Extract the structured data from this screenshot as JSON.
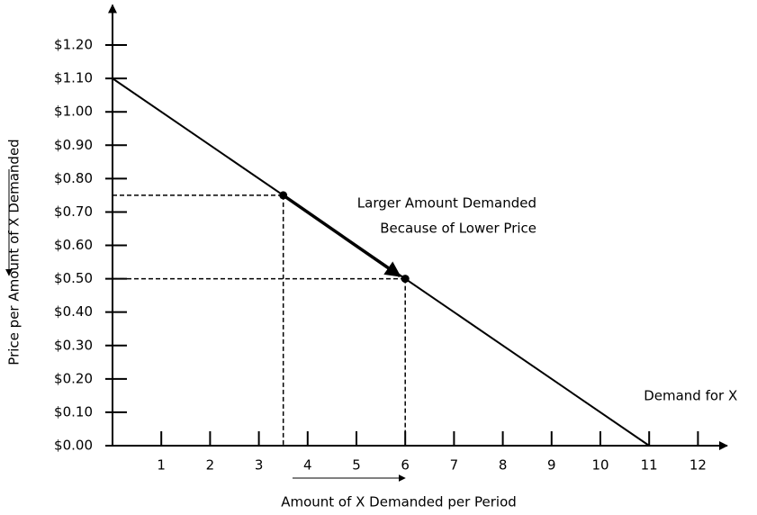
{
  "chart_data": {
    "type": "line",
    "xlabel": "Amount of X Demanded per Period",
    "ylabel": "Price per Amount of X Demanded",
    "annotation": [
      "Larger Amount Demanded",
      "Because of Lower Price"
    ],
    "series": [
      {
        "name": "Demand for X",
        "color": "#000000",
        "x": [
          0,
          11
        ],
        "values": [
          1.1,
          0
        ]
      }
    ],
    "points": {
      "x": [
        3.5,
        6
      ],
      "values": [
        0.75,
        0.5
      ]
    },
    "xlim": [
      0,
      12.6
    ],
    "ylim": [
      0,
      1.32
    ],
    "xticks": [
      1,
      2,
      3,
      4,
      5,
      6,
      7,
      8,
      9,
      10,
      11,
      12
    ],
    "yticks": [
      {
        "value": 0,
        "label": "$0.00"
      },
      {
        "value": 0.1,
        "label": "$0.10"
      },
      {
        "value": 0.2,
        "label": "$0.20"
      },
      {
        "value": 0.3,
        "label": "$0.30"
      },
      {
        "value": 0.4,
        "label": "$0.40"
      },
      {
        "value": 0.5,
        "label": "$0.50"
      },
      {
        "value": 0.6,
        "label": "$0.60"
      },
      {
        "value": 0.7,
        "label": "$0.70"
      },
      {
        "value": 0.8,
        "label": "$0.80"
      },
      {
        "value": 0.9,
        "label": "$0.90"
      },
      {
        "value": 1.0,
        "label": "$1.00"
      },
      {
        "value": 1.1,
        "label": "$1.10"
      },
      {
        "value": 1.2,
        "label": "$1.20"
      }
    ]
  }
}
